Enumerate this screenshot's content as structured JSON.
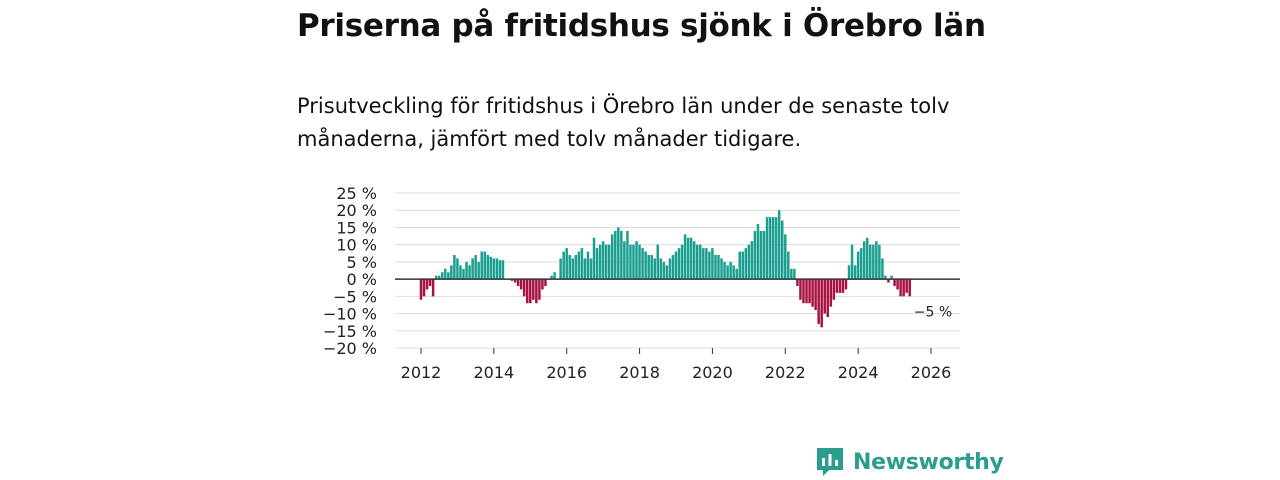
{
  "title": "Priserna på fritidshus sjönk i Örebro län",
  "subtitle": "Prisutveckling för fritidshus i Örebro län under de senaste tolv månaderna, jämfört med tolv månader tidigare.",
  "brand": {
    "name": "Newsworthy",
    "icon": "newsworthy-logo-icon"
  },
  "colors": {
    "positive": "#1a9e8f",
    "negative": "#a8123e",
    "zero_line": "#333333",
    "grid": "#dddddd",
    "brand": "#2a9d8f"
  },
  "chart_data": {
    "type": "bar",
    "title": "Priserna på fritidshus sjönk i Örebro län",
    "xlabel": "",
    "ylabel": "",
    "unit": "%",
    "ylim": [
      -20,
      25
    ],
    "yticks": [
      25,
      20,
      15,
      10,
      5,
      0,
      -5,
      -10,
      -15,
      -20
    ],
    "ytick_labels": [
      "25 %",
      "20 %",
      "15 %",
      "10 %",
      "5 %",
      "0 %",
      "−5 %",
      "−10 %",
      "−15 %",
      "−20 %"
    ],
    "xlim": [
      2011.5,
      2026.8
    ],
    "xticks": [
      2012,
      2014,
      2016,
      2018,
      2020,
      2022,
      2024,
      2026
    ],
    "xtick_labels": [
      "2012",
      "2014",
      "2016",
      "2018",
      "2020",
      "2022",
      "2024",
      "2026"
    ],
    "grid": true,
    "series": [
      {
        "name": "Prisutveckling",
        "start": 2012.0,
        "step_years": 0.08333,
        "values": [
          -6,
          -5,
          -3,
          -2,
          -5,
          1,
          1,
          2,
          3,
          2,
          4,
          7,
          6,
          4,
          3,
          5,
          4,
          6,
          7,
          5,
          8,
          8,
          7,
          6.5,
          6,
          6,
          5.5,
          5.5,
          0,
          0,
          -0.5,
          -1,
          -2,
          -3,
          -5,
          -7,
          -7,
          -6,
          -7,
          -6,
          -3,
          -2,
          0,
          1,
          2,
          0,
          6,
          8,
          9,
          7,
          6,
          7,
          8,
          9,
          6,
          8,
          6,
          12,
          9,
          10,
          11,
          10,
          10,
          13,
          14,
          15,
          14,
          11,
          14,
          10,
          10,
          11,
          10,
          9,
          8,
          7,
          7,
          6,
          10,
          6,
          5,
          4,
          6,
          7,
          8,
          9,
          10,
          13,
          12,
          12,
          11,
          10,
          10,
          9,
          9,
          8,
          9,
          7,
          7,
          6,
          5,
          4,
          5,
          4,
          3,
          8,
          8,
          9,
          10,
          11,
          14,
          16,
          14,
          14,
          18,
          18,
          18,
          18,
          20,
          17,
          13,
          8,
          3,
          3,
          -2,
          -6,
          -7,
          -7,
          -7,
          -8,
          -9,
          -13,
          -14,
          -10,
          -11,
          -8,
          -6,
          -4,
          -4,
          -4,
          -3,
          4,
          10,
          4,
          8,
          9,
          11,
          12,
          10,
          10,
          11,
          10,
          6,
          1,
          -1,
          1,
          -2,
          -3,
          -5,
          -5,
          -4,
          -5
        ]
      }
    ],
    "annotations": [
      {
        "text": "−5 %",
        "x": 2026.0,
        "y": -5
      }
    ]
  }
}
